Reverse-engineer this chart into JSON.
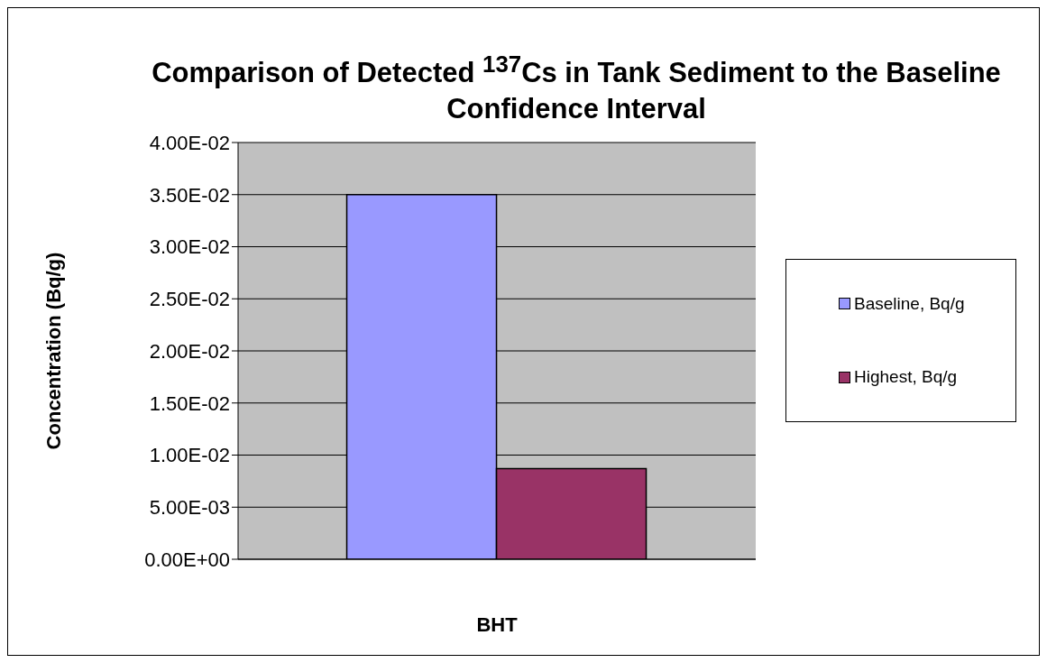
{
  "chart_data": {
    "type": "bar",
    "title": "Comparison of Detected $^{137}$Cs in Tank Sediment to the Baseline Confidence Interval",
    "xlabel": "BHT",
    "ylabel": "Concentration (Bq/g)",
    "categories": [
      null
    ],
    "series": [
      {
        "name": "Baseline, Bq/g",
        "color": "#9999ff",
        "values": [
          0.035
        ]
      },
      {
        "name": "Highest, Bq/g",
        "color": "#993366",
        "values": [
          0.0087
        ]
      }
    ],
    "ylim": [
      0,
      0.04
    ],
    "yticks": [
      {
        "value": 0,
        "label": "0.00E+00"
      },
      {
        "value": 0.005,
        "label": "5.00E-03"
      },
      {
        "value": 0.01,
        "label": "1.00E-02"
      },
      {
        "value": 0.015,
        "label": "1.50E-02"
      },
      {
        "value": 0.02,
        "label": "2.00E-02"
      },
      {
        "value": 0.025,
        "label": "2.50E-02"
      },
      {
        "value": 0.03,
        "label": "3.00E-02"
      },
      {
        "value": 0.035,
        "label": "3.50E-02"
      },
      {
        "value": 0.04,
        "label": "4.00E-02"
      }
    ],
    "grid": "y",
    "legend": "right",
    "tick_labels": "y"
  }
}
